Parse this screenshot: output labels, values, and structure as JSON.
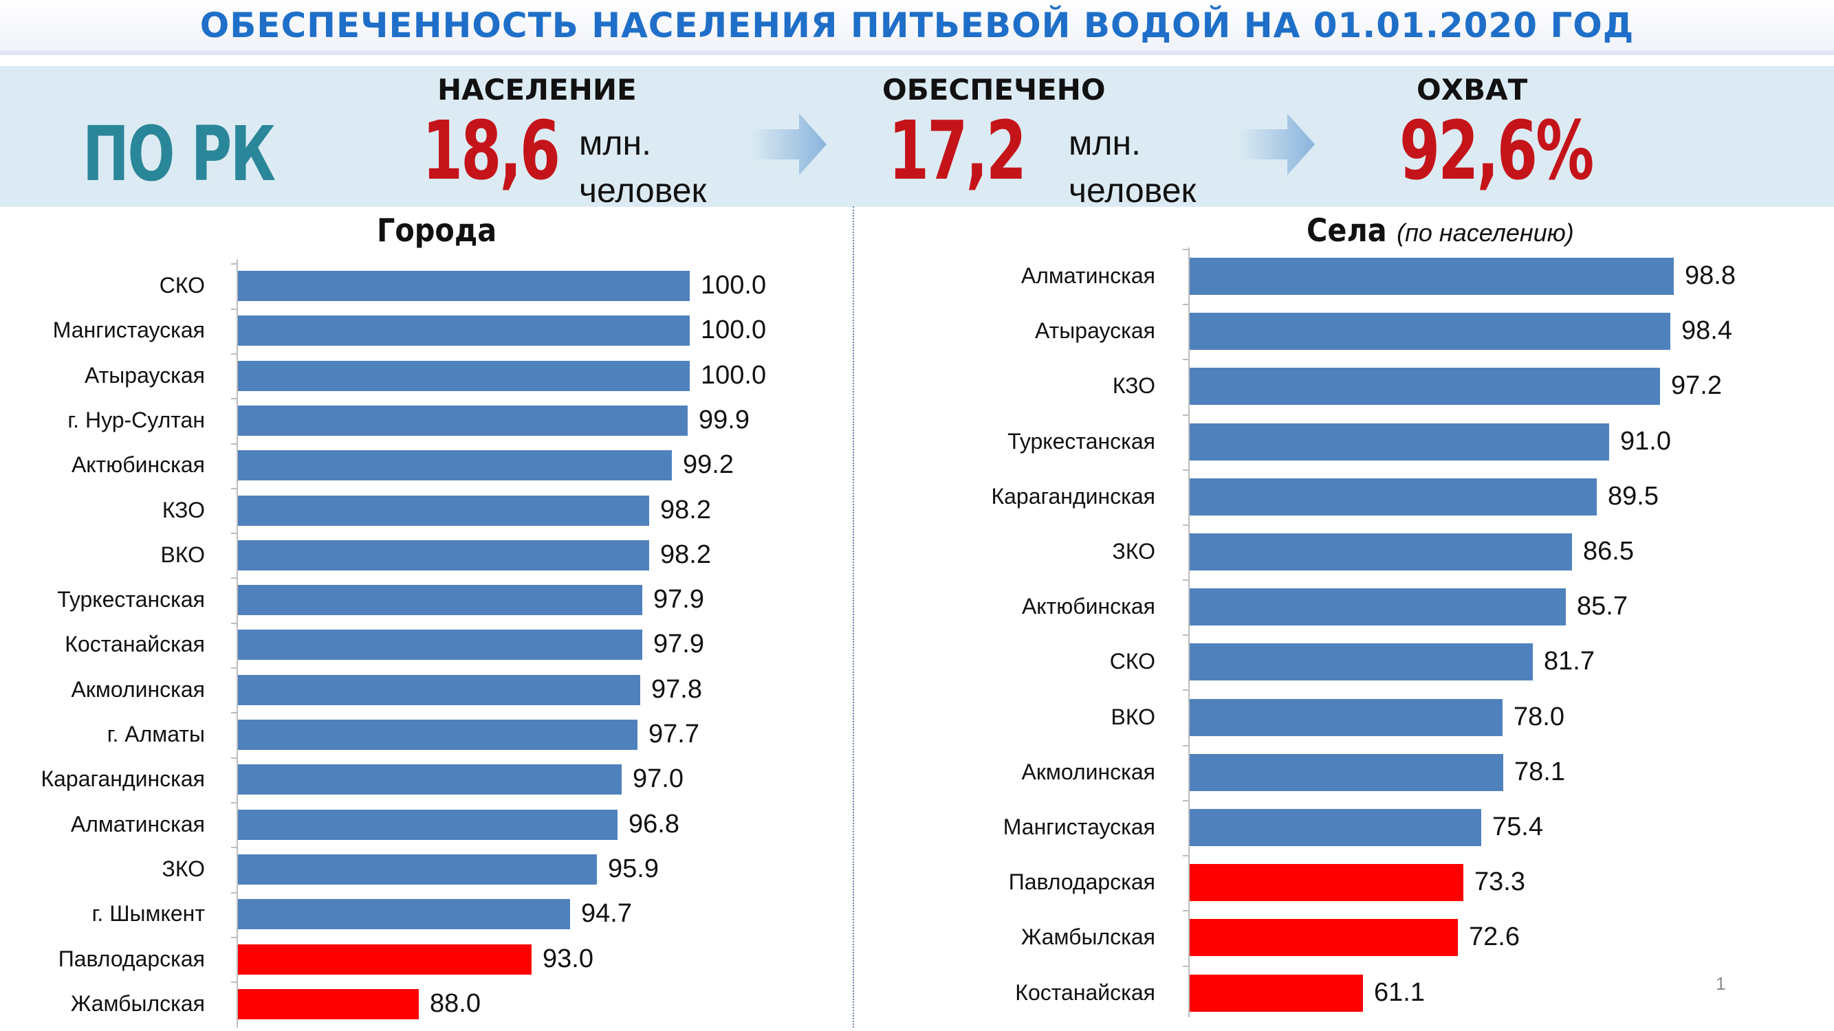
{
  "header": {
    "title": "ОБЕСПЕЧЕННОСТЬ НАСЕЛЕНИЯ ПИТЬЕВОЙ ВОДОЙ НА 01.01.2020 ГОД"
  },
  "summary": {
    "region": "ПО РК",
    "population": {
      "heading": "НАСЕЛЕНИЕ",
      "value": "18,6",
      "unit_line1": "млн.",
      "unit_line2": "человек"
    },
    "provided": {
      "heading": "ОБЕСПЕЧЕНО",
      "value": "17,2",
      "unit_line1": "млн.",
      "unit_line2": "человек"
    },
    "coverage": {
      "heading": "ОХВАТ",
      "value": "92,6%"
    }
  },
  "colors": {
    "bar_normal": "#4f81bd",
    "bar_low": "#ff0000",
    "title_blue": "#1f6fc9",
    "region_teal": "#2a8699",
    "number_red": "#c4141a"
  },
  "chart_data": [
    {
      "type": "bar",
      "orientation": "horizontal",
      "title": "Города",
      "subtitle": "",
      "categories": [
        "СКО",
        "Мангистауская",
        "Атырауская",
        "г. Нур-Султан",
        "Актюбинская",
        "КЗО",
        "ВКО",
        "Туркестанская",
        "Костанайская",
        "Акмолинская",
        "г. Алматы",
        "Карагандинская",
        "Алматинская",
        "ЗКО",
        "г. Шымкент",
        "Павлодарская",
        "Жамбылская"
      ],
      "values": [
        100.0,
        100.0,
        100.0,
        99.9,
        99.2,
        98.2,
        98.2,
        97.9,
        97.9,
        97.8,
        97.7,
        97.0,
        96.8,
        95.9,
        94.7,
        93.0,
        88.0
      ],
      "value_labels": [
        "100.0",
        "100.0",
        "100.0",
        "99.9",
        "99.2",
        "98.2",
        "98.2",
        "97.9",
        "97.9",
        "97.8",
        "97.7",
        "97.0",
        "96.8",
        "95.9",
        "94.7",
        "93.0",
        "88.0"
      ],
      "highlight": [
        false,
        false,
        false,
        false,
        false,
        false,
        false,
        false,
        false,
        false,
        false,
        false,
        false,
        false,
        false,
        true,
        true
      ],
      "xlim": [
        80,
        100
      ]
    },
    {
      "type": "bar",
      "orientation": "horizontal",
      "title": "Села",
      "subtitle": "(по населению)",
      "categories": [
        "Алматинская",
        "Атырауская",
        "КЗО",
        "Туркестанская",
        "Карагандинская",
        "ЗКО",
        "Актюбинская",
        "СКО",
        "ВКО",
        "Акмолинская",
        "Мангистауская",
        "Павлодарская",
        "Жамбылская",
        "Костанайская"
      ],
      "values": [
        98.8,
        98.4,
        97.2,
        91.0,
        89.5,
        86.5,
        85.7,
        81.7,
        78.0,
        78.1,
        75.4,
        73.3,
        72.6,
        61.1
      ],
      "value_labels": [
        "98.8",
        "98.4",
        "97.2",
        "91.0",
        "89.5",
        "86.5",
        "85.7",
        "81.7",
        "78.0",
        "78.1",
        "75.4",
        "73.3",
        "72.6",
        "61.1"
      ],
      "highlight": [
        false,
        false,
        false,
        false,
        false,
        false,
        false,
        false,
        false,
        false,
        false,
        true,
        true,
        true
      ],
      "xlim": [
        40,
        100
      ]
    }
  ],
  "footer": {
    "page_number": "1"
  }
}
